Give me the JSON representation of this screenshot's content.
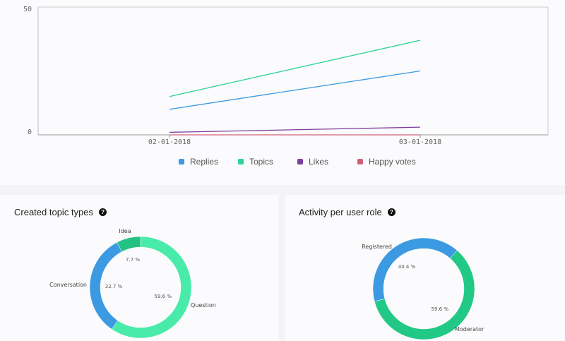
{
  "chart_data": [
    {
      "type": "line",
      "x": [
        "02-01-2018",
        "03-01-2018"
      ],
      "ylim": [
        0,
        50
      ],
      "yticks": [
        "0",
        "50"
      ],
      "grid": false,
      "legend_position": "bottom",
      "series": [
        {
          "name": "Replies",
          "values": [
            10,
            25
          ],
          "color": "#3b9ae1"
        },
        {
          "name": "Topics",
          "values": [
            15,
            37
          ],
          "color": "#2fd39a"
        },
        {
          "name": "Likes",
          "values": [
            1,
            3
          ],
          "color": "#7b3fa0"
        },
        {
          "name": "Happy votes",
          "values": [
            0,
            0
          ],
          "color": "#d0607a"
        }
      ]
    },
    {
      "type": "pie",
      "title": "Created topic types",
      "slices": [
        {
          "label": "Question",
          "value": 59.6,
          "pct_label": "59.6 %",
          "color": "#48eba9"
        },
        {
          "label": "Conversation",
          "value": 32.7,
          "pct_label": "32.7 %",
          "color": "#3b9ae1"
        },
        {
          "label": "Idea",
          "value": 7.7,
          "pct_label": "7.7 %",
          "color": "#22c283"
        }
      ]
    },
    {
      "type": "pie",
      "title": "Activity per user role",
      "slices": [
        {
          "label": "Moderator",
          "value": 59.6,
          "pct_label": "59.6 %",
          "color": "#22c886"
        },
        {
          "label": "Registered",
          "value": 40.4,
          "pct_label": "40.4 %",
          "color": "#3b9ae1"
        }
      ]
    }
  ],
  "help_icon": "?"
}
